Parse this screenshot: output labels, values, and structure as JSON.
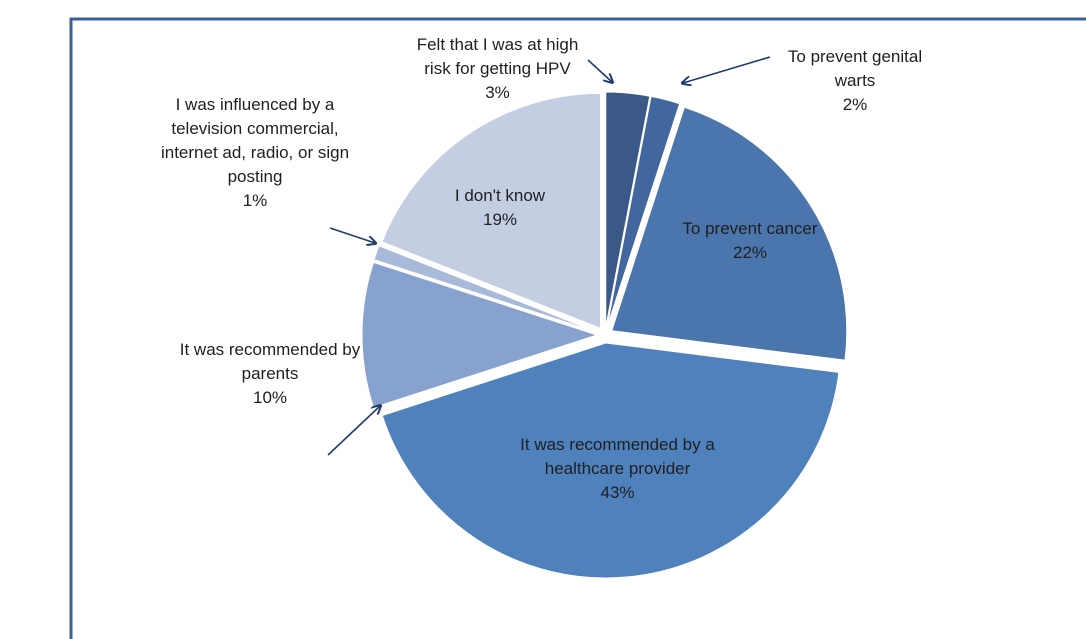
{
  "chart_data": {
    "type": "pie",
    "categories": [
      "Felt that I was at high risk for getting HPV",
      "To prevent genital warts",
      "To prevent cancer",
      "It was recommended by a healthcare provider",
      "It was recommended by parents",
      "I was influenced by a television commercial, internet ad, radio, or sign posting",
      "I don't know"
    ],
    "values": [
      3,
      2,
      22,
      43,
      10,
      1,
      19
    ],
    "value_labels": [
      "3%",
      "2%",
      "22%",
      "43%",
      "10%",
      "1%",
      "19%"
    ],
    "colors": [
      "#3a5988",
      "#41679e",
      "#4a75ad",
      "#4f81bd",
      "#87a2cf",
      "#a8bada",
      "#c3cee3"
    ]
  }
}
